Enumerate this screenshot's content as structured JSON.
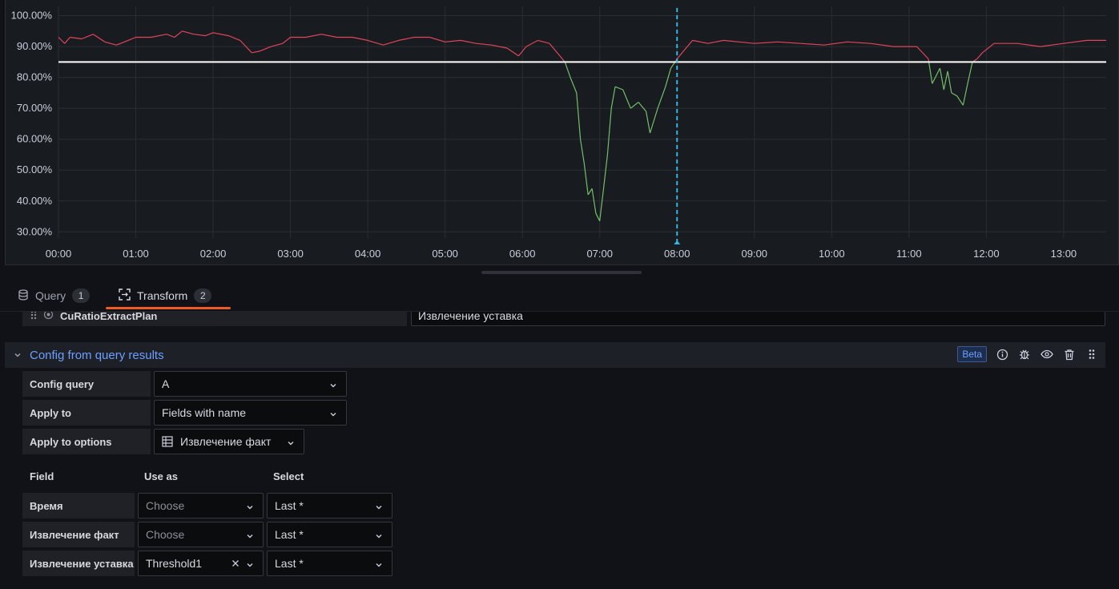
{
  "chart_data": {
    "type": "line",
    "x_ticks": [
      "00:00",
      "01:00",
      "02:00",
      "03:00",
      "04:00",
      "05:00",
      "06:00",
      "07:00",
      "08:00",
      "09:00",
      "10:00",
      "11:00",
      "12:00",
      "13:00"
    ],
    "y_ticks": [
      "30.00%",
      "40.00%",
      "50.00%",
      "60.00%",
      "70.00%",
      "80.00%",
      "90.00%",
      "100.00%"
    ],
    "ylim": [
      28,
      103
    ],
    "xlim_hours": [
      0,
      13.55
    ],
    "threshold": 85,
    "cursor_hour": 8.0,
    "colors": {
      "above": "#e0455a",
      "below": "#73bf69",
      "threshold": "#ffffff",
      "cursor": "#33b5e5",
      "grid": "#2b2e33"
    },
    "series": [
      {
        "name": "",
        "points": [
          [
            0,
            93
          ],
          [
            0.08,
            91
          ],
          [
            0.15,
            93
          ],
          [
            0.3,
            92.5
          ],
          [
            0.45,
            94
          ],
          [
            0.6,
            91.5
          ],
          [
            0.75,
            90.5
          ],
          [
            0.9,
            92
          ],
          [
            1.0,
            93
          ],
          [
            1.2,
            93
          ],
          [
            1.4,
            94
          ],
          [
            1.5,
            93
          ],
          [
            1.6,
            95
          ],
          [
            1.75,
            94
          ],
          [
            1.9,
            93.5
          ],
          [
            2.0,
            94.5
          ],
          [
            2.2,
            93.5
          ],
          [
            2.35,
            92
          ],
          [
            2.5,
            88
          ],
          [
            2.6,
            88.5
          ],
          [
            2.75,
            90
          ],
          [
            2.9,
            91
          ],
          [
            3.0,
            93
          ],
          [
            3.2,
            93
          ],
          [
            3.4,
            94
          ],
          [
            3.6,
            93
          ],
          [
            3.8,
            93
          ],
          [
            4.0,
            92
          ],
          [
            4.2,
            90.5
          ],
          [
            4.4,
            92
          ],
          [
            4.6,
            93
          ],
          [
            4.8,
            93
          ],
          [
            5.0,
            91.5
          ],
          [
            5.2,
            92
          ],
          [
            5.4,
            91
          ],
          [
            5.6,
            90.5
          ],
          [
            5.8,
            89.5
          ],
          [
            5.95,
            87
          ],
          [
            6.05,
            90
          ],
          [
            6.2,
            92
          ],
          [
            6.35,
            91
          ],
          [
            6.45,
            88
          ],
          [
            6.55,
            85
          ],
          [
            6.62,
            80
          ],
          [
            6.7,
            75
          ],
          [
            6.75,
            60
          ],
          [
            6.8,
            52
          ],
          [
            6.85,
            42
          ],
          [
            6.9,
            44
          ],
          [
            6.95,
            36
          ],
          [
            7.0,
            33.5
          ],
          [
            7.05,
            44
          ],
          [
            7.1,
            55
          ],
          [
            7.15,
            70
          ],
          [
            7.2,
            77
          ],
          [
            7.3,
            76
          ],
          [
            7.4,
            70
          ],
          [
            7.5,
            72
          ],
          [
            7.6,
            69
          ],
          [
            7.65,
            62
          ],
          [
            7.75,
            70
          ],
          [
            7.85,
            77
          ],
          [
            7.92,
            83
          ],
          [
            8.0,
            86
          ],
          [
            8.1,
            89
          ],
          [
            8.2,
            92
          ],
          [
            8.4,
            91
          ],
          [
            8.6,
            92
          ],
          [
            8.8,
            91.5
          ],
          [
            9.0,
            91
          ],
          [
            9.3,
            91.5
          ],
          [
            9.6,
            91
          ],
          [
            9.9,
            90.5
          ],
          [
            10.2,
            91.5
          ],
          [
            10.5,
            91
          ],
          [
            10.8,
            90
          ],
          [
            11.1,
            90
          ],
          [
            11.25,
            86
          ],
          [
            11.3,
            78
          ],
          [
            11.4,
            83
          ],
          [
            11.45,
            76
          ],
          [
            11.5,
            82
          ],
          [
            11.55,
            75
          ],
          [
            11.62,
            74
          ],
          [
            11.7,
            71
          ],
          [
            11.75,
            77
          ],
          [
            11.82,
            85
          ],
          [
            11.88,
            86
          ],
          [
            11.95,
            88
          ],
          [
            12.1,
            91
          ],
          [
            12.4,
            91
          ],
          [
            12.7,
            90
          ],
          [
            13.0,
            91
          ],
          [
            13.3,
            92
          ],
          [
            13.55,
            92
          ]
        ]
      }
    ]
  },
  "tabs": {
    "query_label": "Query",
    "query_count": "1",
    "transform_label": "Transform",
    "transform_count": "2"
  },
  "prev_row": {
    "name": "CuRatioExtractPlan",
    "value": "Извлечение уставка"
  },
  "section": {
    "title": "Config from query results",
    "badge": "Beta"
  },
  "form": {
    "config_query_label": "Config query",
    "config_query_value": "A",
    "apply_to_label": "Apply to",
    "apply_to_value": "Fields with name",
    "apply_to_options_label": "Apply to options",
    "apply_to_options_value": "Извлечение факт"
  },
  "mapping": {
    "col_field": "Field",
    "col_use_as": "Use as",
    "col_select": "Select",
    "rows": [
      {
        "field": "Время",
        "use_as": "Choose",
        "select": "Last *"
      },
      {
        "field": "Извлечение факт",
        "use_as": "Choose",
        "select": "Last *"
      },
      {
        "field": "Извлечение уставка",
        "use_as": "Threshold1",
        "select": "Last *"
      }
    ]
  }
}
